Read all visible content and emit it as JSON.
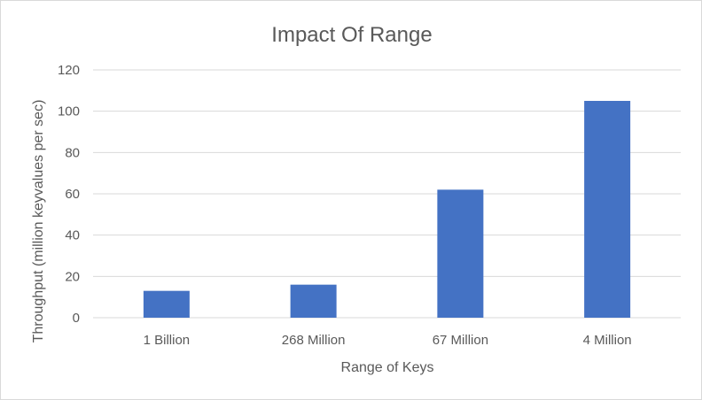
{
  "chart_data": {
    "type": "bar",
    "title": "Impact Of Range",
    "xlabel": "Range of Keys",
    "ylabel": "Throughput (million keyvalues per sec)",
    "categories": [
      "1 Billion",
      "268 Million",
      "67 Million",
      "4 Million"
    ],
    "values": [
      13,
      16,
      62,
      105
    ],
    "ylim": [
      0,
      120
    ],
    "yticks": [
      0,
      20,
      40,
      60,
      80,
      100,
      120
    ],
    "grid": true,
    "legend": "none",
    "colors": {
      "bar": "#4472C4",
      "grid": "#d9d9d9",
      "text": "#595959"
    }
  }
}
